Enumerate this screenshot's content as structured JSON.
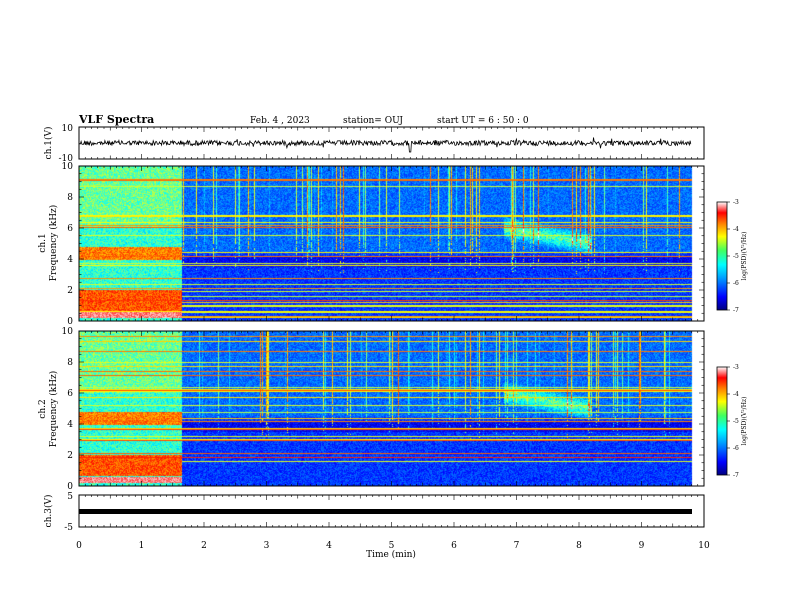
{
  "header": {
    "title": "VLF Spectra",
    "date": "Feb. 4 , 2023",
    "station": "station= OUJ",
    "start": "start  UT =   6  : 50 : 0"
  },
  "chart_data": [
    {
      "type": "line",
      "panel": "ch1-waveform",
      "ylabel": "ch.1(V)",
      "ylim": [
        -10,
        10
      ],
      "yticks": [
        -10,
        10
      ],
      "xlim": [
        0,
        10
      ],
      "series": [
        {
          "values_approx_level": 0
        }
      ]
    },
    {
      "type": "heatmap",
      "panel": "ch1-spectrogram",
      "ylabel_line1": "ch.1",
      "ylabel_line2": "Frequency (kHz)",
      "ylim": [
        0,
        10
      ],
      "yticks": [
        0,
        2,
        4,
        6,
        8,
        10
      ],
      "xlim": [
        0,
        10
      ],
      "data_end_min": 9.8,
      "transition_min": 1.65,
      "colorbar": {
        "label": "log(PSD)(V²/Hz)",
        "range": [
          -7,
          -3
        ],
        "ticks": [
          -3,
          -4,
          -5,
          -6,
          -7
        ]
      }
    },
    {
      "type": "heatmap",
      "panel": "ch2-spectrogram",
      "ylabel_line1": "ch.2",
      "ylabel_line2": "Frequency (kHz)",
      "ylim": [
        0,
        10
      ],
      "yticks": [
        0,
        2,
        4,
        6,
        8,
        10
      ],
      "xlim": [
        0,
        10
      ],
      "data_end_min": 9.8,
      "transition_min": 1.65,
      "colorbar": {
        "label": "log(PSD)(V²/Hz)",
        "range": [
          -7,
          -3
        ],
        "ticks": [
          -3,
          -4,
          -5,
          -6,
          -7
        ]
      }
    },
    {
      "type": "line",
      "panel": "ch3-waveform",
      "ylabel": "ch.3(V)",
      "ylim": [
        -5,
        5
      ],
      "yticks": [
        -5,
        5
      ],
      "xlim": [
        0,
        10
      ],
      "series": [
        {
          "values_approx_level": 0
        }
      ]
    }
  ],
  "xaxis": {
    "label": "Time  (min)",
    "ticks": [
      "0",
      "1",
      "2",
      "3",
      "4",
      "5",
      "6",
      "7",
      "8",
      "9",
      "10"
    ]
  },
  "colors": {
    "colormap": [
      "#00007f",
      "#0000ff",
      "#0080ff",
      "#00ffff",
      "#80ff80",
      "#ffff00",
      "#ff8000",
      "#ff0000",
      "#ffffff"
    ]
  }
}
